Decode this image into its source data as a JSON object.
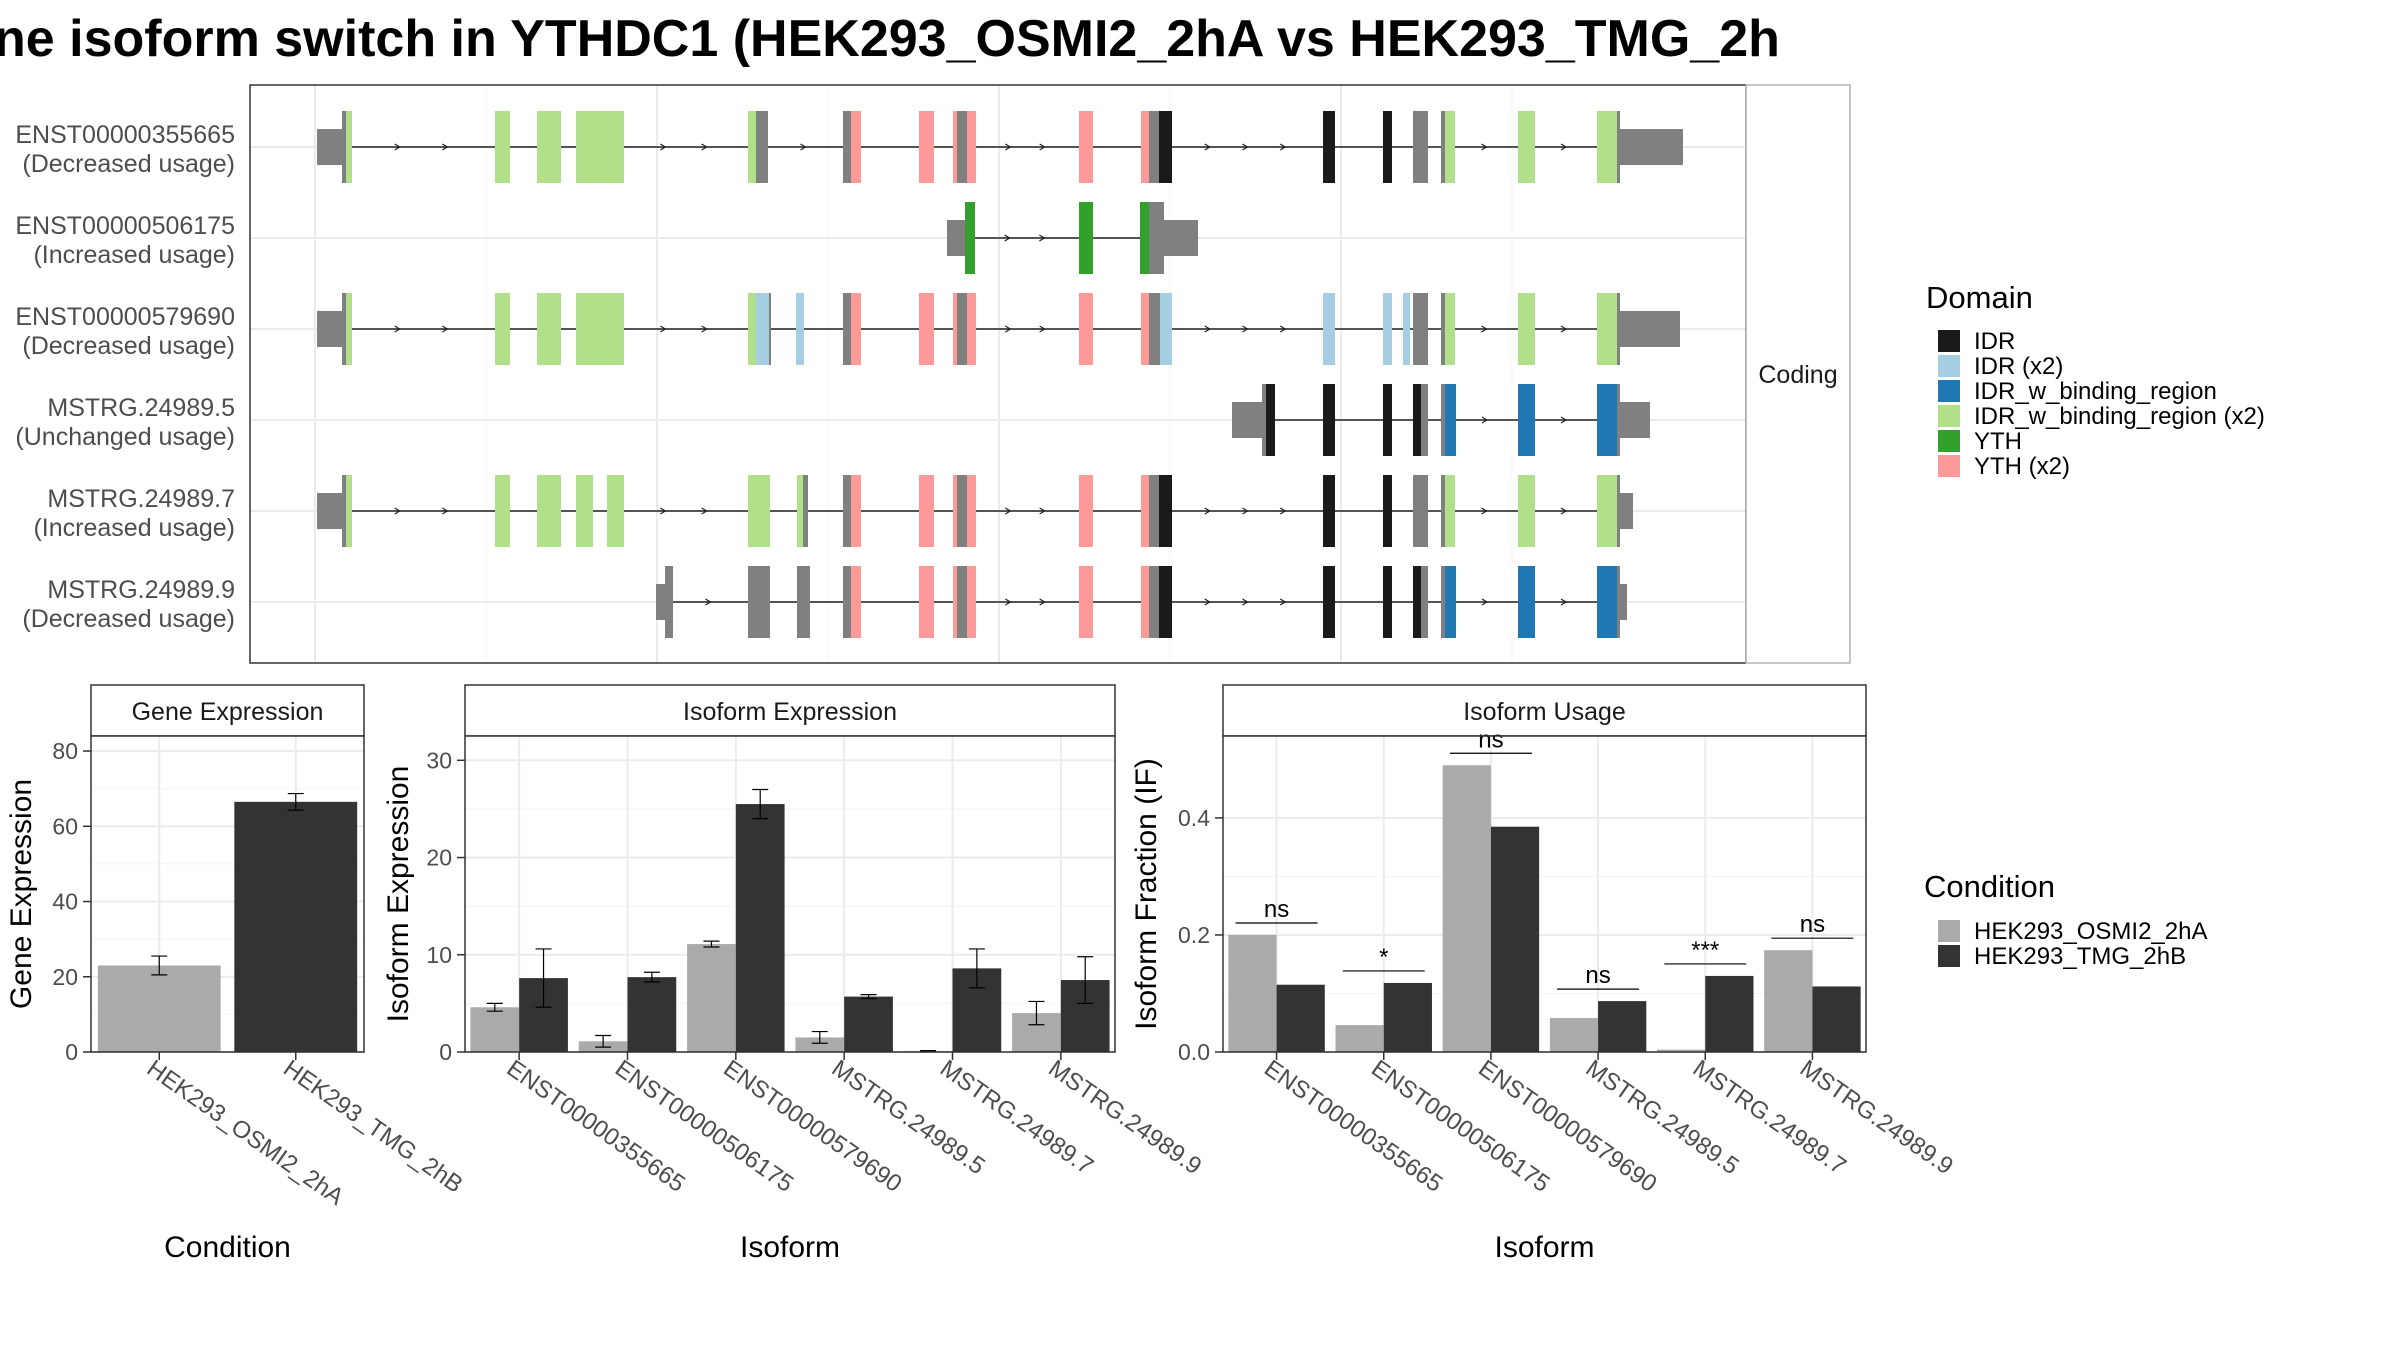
{
  "title": "ne isoform switch in YTHDC1 (HEK293_OSMI2_2hA vs HEK293_TMG_2h",
  "colors": {
    "IDR": "#1a1a1a",
    "IDR (x2)": "#a6cee3",
    "IDR_w_binding_region": "#1f78b4",
    "IDR_w_binding_region (x2)": "#b2df8a",
    "YTH": "#33a02c",
    "YTH (x2)": "#fb9a99",
    "noncoding": "#808080",
    "cond_a": "#aaaaaa",
    "cond_b": "#333333"
  },
  "transcripts": [
    {
      "id": "ENST00000355665",
      "usage": "(Decreased usage)"
    },
    {
      "id": "ENST00000506175",
      "usage": "(Increased usage)"
    },
    {
      "id": "ENST00000579690",
      "usage": "(Decreased usage)"
    },
    {
      "id": "MSTRG.24989.5",
      "usage": "(Unchanged usage)"
    },
    {
      "id": "MSTRG.24989.7",
      "usage": "(Increased usage)"
    },
    {
      "id": "MSTRG.24989.9",
      "usage": "(Decreased usage)"
    }
  ],
  "strip_coding": "Coding",
  "domain_legend": {
    "title": "Domain",
    "items": [
      "IDR",
      "IDR (x2)",
      "IDR_w_binding_region",
      "IDR_w_binding_region (x2)",
      "YTH",
      "YTH (x2)"
    ]
  },
  "condition_legend": {
    "title": "Condition",
    "items": [
      "HEK293_OSMI2_2hA",
      "HEK293_TMG_2hB"
    ]
  },
  "chart_data": [
    {
      "type": "bar",
      "title": "Gene Expression",
      "xlabel": "Condition",
      "ylabel": "Gene Expression",
      "categories": [
        "HEK293_OSMI2_2hA",
        "HEK293_TMG_2hB"
      ],
      "values": [
        23,
        66.5
      ],
      "errors": [
        2.5,
        2.2
      ],
      "ylim": [
        0,
        84
      ],
      "yticks": [
        0,
        20,
        40,
        60,
        80
      ]
    },
    {
      "type": "bar",
      "title": "Isoform Expression",
      "xlabel": "Isoform",
      "ylabel": "Isoform Expression",
      "categories": [
        "ENST00000355665",
        "ENST00000506175",
        "ENST00000579690",
        "MSTRG.24989.5",
        "MSTRG.24989.7",
        "MSTRG.24989.9"
      ],
      "series": [
        {
          "name": "HEK293_OSMI2_2hA",
          "values": [
            4.6,
            1.1,
            11.1,
            1.5,
            0.1,
            4.0
          ],
          "errors": [
            0.4,
            0.6,
            0.3,
            0.6,
            0.05,
            1.2
          ]
        },
        {
          "name": "HEK293_TMG_2hB",
          "values": [
            7.6,
            7.7,
            25.5,
            5.7,
            8.6,
            7.4
          ],
          "errors": [
            3.0,
            0.5,
            1.5,
            0.2,
            2.0,
            2.4
          ]
        }
      ],
      "ylim": [
        0,
        32.5
      ],
      "yticks": [
        0,
        10,
        20,
        30
      ]
    },
    {
      "type": "bar",
      "title": "Isoform Usage",
      "xlabel": "Isoform",
      "ylabel": "Isoform Fraction (IF)",
      "categories": [
        "ENST00000355665",
        "ENST00000506175",
        "ENST00000579690",
        "MSTRG.24989.5",
        "MSTRG.24989.7",
        "MSTRG.24989.9"
      ],
      "series": [
        {
          "name": "HEK293_OSMI2_2hA",
          "values": [
            0.2,
            0.046,
            0.49,
            0.058,
            0.004,
            0.174
          ]
        },
        {
          "name": "HEK293_TMG_2hB",
          "values": [
            0.115,
            0.118,
            0.385,
            0.087,
            0.13,
            0.112
          ]
        }
      ],
      "significance": [
        "ns",
        "*",
        "ns",
        "ns",
        "***",
        "ns"
      ],
      "ylim": [
        0,
        0.54
      ],
      "yticks": [
        0.0,
        0.2,
        0.4
      ],
      "yticklabels": [
        "0.0",
        "0.2",
        "0.4"
      ]
    }
  ]
}
